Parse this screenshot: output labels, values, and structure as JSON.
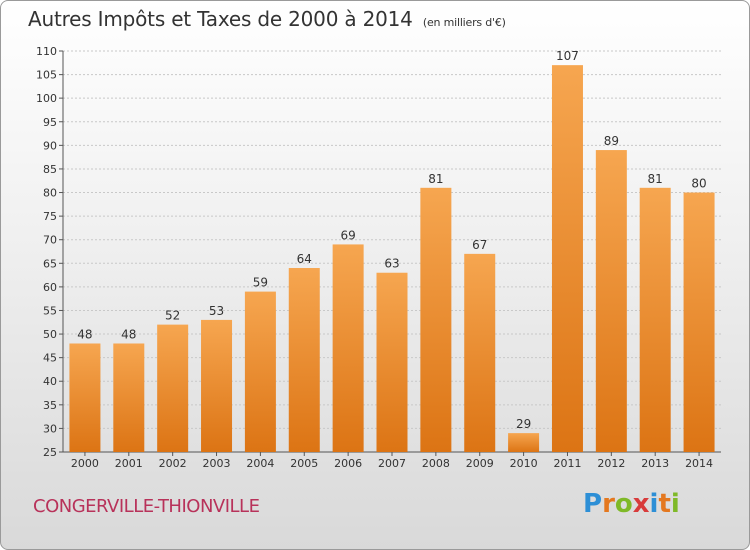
{
  "header": {
    "title": "Autres Impôts et Taxes de 2000 à 2014",
    "unit": "(en milliers d'€)"
  },
  "footer": {
    "commune": "CONGERVILLE-THIONVILLE",
    "brand_letters": [
      "P",
      "r",
      "o",
      "x",
      "i",
      "t",
      "i"
    ],
    "brand_colors": [
      "#2d8fd6",
      "#e4781f",
      "#7fb928",
      "#d83b3b",
      "#2d8fd6",
      "#e4781f",
      "#7fb928"
    ]
  },
  "chart_data": {
    "type": "bar",
    "title": "Autres Impôts et Taxes de 2000 à 2014",
    "subtitle": "(en milliers d'€)",
    "categories": [
      "2000",
      "2001",
      "2002",
      "2003",
      "2004",
      "2005",
      "2006",
      "2007",
      "2008",
      "2009",
      "2010",
      "2011",
      "2012",
      "2013",
      "2014"
    ],
    "values": [
      48,
      48,
      52,
      53,
      59,
      64,
      69,
      63,
      81,
      67,
      29,
      107,
      89,
      81,
      80
    ],
    "ylim": [
      25,
      110
    ],
    "yticks": [
      25,
      30,
      35,
      40,
      45,
      50,
      55,
      60,
      65,
      70,
      75,
      80,
      85,
      90,
      95,
      100,
      105,
      110
    ],
    "grid": true,
    "bar_color": "#f0922e"
  }
}
